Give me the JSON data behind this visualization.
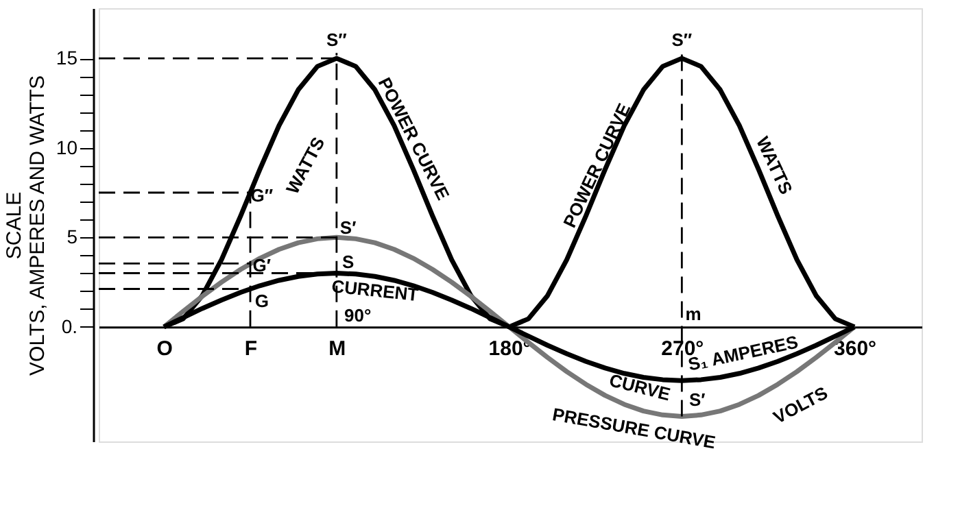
{
  "chart_data": {
    "type": "line",
    "ylabel": "SCALE\nVOLTS, AMPERES AND WATTS",
    "xlim": [
      -34,
      395
    ],
    "ylim": [
      -6.4,
      17.8
    ],
    "xticks": [
      {
        "value": 0,
        "label": "O"
      },
      {
        "value": 45,
        "label": "F"
      },
      {
        "value": 90,
        "label": "M"
      },
      {
        "value": 180,
        "label": "180°"
      },
      {
        "value": 270,
        "label": "270°"
      },
      {
        "value": 360,
        "label": "360°"
      }
    ],
    "yticks": [
      {
        "value": 0,
        "label": "0."
      },
      {
        "value": 1,
        "label": null
      },
      {
        "value": 2,
        "label": null
      },
      {
        "value": 3,
        "label": null
      },
      {
        "value": 4,
        "label": null
      },
      5,
      {
        "value": 6,
        "label": null
      },
      {
        "value": 7,
        "label": null
      },
      {
        "value": 8,
        "label": null
      },
      {
        "value": 9,
        "label": null
      },
      10,
      {
        "value": 11,
        "label": null
      },
      {
        "value": 12,
        "label": null
      },
      {
        "value": 13,
        "label": null
      },
      {
        "value": 14,
        "label": null
      },
      15
    ],
    "grid": false,
    "marker": "none",
    "x": [
      0,
      10,
      20,
      30,
      40,
      50,
      60,
      70,
      80,
      90,
      100,
      110,
      120,
      130,
      140,
      150,
      160,
      170,
      180,
      190,
      200,
      210,
      220,
      230,
      240,
      250,
      260,
      270,
      280,
      290,
      300,
      310,
      320,
      330,
      340,
      350,
      360
    ],
    "series": [
      {
        "color": "#000000",
        "line_style": "solid",
        "values": [
          0,
          0.45,
          1.75,
          3.75,
          6.2,
          8.8,
          11.25,
          13.24,
          14.55,
          15,
          14.55,
          13.24,
          11.25,
          8.8,
          6.2,
          3.75,
          1.75,
          0.45,
          0,
          0.45,
          1.75,
          3.75,
          6.2,
          8.8,
          11.25,
          13.24,
          14.55,
          15,
          14.55,
          13.24,
          11.25,
          8.8,
          6.2,
          3.75,
          1.75,
          0.45,
          0
        ]
      },
      {
        "color": "#777777",
        "line_style": "solid",
        "values": [
          0,
          0.87,
          1.71,
          2.5,
          3.21,
          3.83,
          4.33,
          4.7,
          4.92,
          5,
          4.92,
          4.7,
          4.33,
          3.83,
          3.21,
          2.5,
          1.71,
          0.87,
          0,
          -0.87,
          -1.71,
          -2.5,
          -3.21,
          -3.83,
          -4.33,
          -4.7,
          -4.92,
          -5,
          -4.92,
          -4.7,
          -4.33,
          -3.83,
          -3.21,
          -2.5,
          -1.71,
          -0.87,
          0
        ]
      },
      {
        "color": "#000000",
        "line_style": "solid",
        "values": [
          0,
          0.52,
          1.03,
          1.5,
          1.93,
          2.3,
          2.6,
          2.82,
          2.95,
          3,
          2.95,
          2.82,
          2.6,
          2.3,
          1.93,
          1.5,
          1.03,
          0.52,
          0,
          -0.52,
          -1.03,
          -1.5,
          -1.93,
          -2.3,
          -2.6,
          -2.82,
          -2.95,
          -3,
          -2.95,
          -2.82,
          -2.6,
          -2.3,
          -1.93,
          -1.5,
          -1.03,
          -0.52,
          0
        ]
      },
      {
        "color": "#000000",
        "line_style": "dashed",
        "x": [
          -34,
          90
        ],
        "values": [
          15,
          15
        ]
      },
      {
        "color": "#000000",
        "line_style": "dashed",
        "x": [
          -34,
          45
        ],
        "values": [
          7.5,
          7.5
        ]
      },
      {
        "color": "#000000",
        "line_style": "dashed",
        "x": [
          -34,
          90
        ],
        "values": [
          5,
          5
        ]
      },
      {
        "color": "#000000",
        "line_style": "dashed",
        "x": [
          -34,
          45
        ],
        "values": [
          3.54,
          3.54
        ]
      },
      {
        "color": "#000000",
        "line_style": "dashed",
        "x": [
          -34,
          90
        ],
        "values": [
          3,
          3
        ]
      },
      {
        "color": "#000000",
        "line_style": "dashed",
        "x": [
          -34,
          45
        ],
        "values": [
          2.12,
          2.12
        ]
      },
      {
        "color": "#000000",
        "line_style": "dashed",
        "x": [
          45,
          45
        ],
        "values": [
          0,
          7.5
        ]
      },
      {
        "color": "#000000",
        "line_style": "dashed",
        "x": [
          90,
          90
        ],
        "values": [
          0,
          15.3
        ]
      },
      {
        "color": "#000000",
        "line_style": "dashed",
        "x": [
          270,
          270
        ],
        "values": [
          -5,
          15.3
        ]
      }
    ],
    "annotations": [
      "S″",
      "WATTS",
      "POWER CURVE",
      "G″",
      "S′",
      "G′",
      "S",
      "G",
      "CURRENT",
      "90°",
      "POWER CURVE",
      "S″",
      "WATTS",
      "m",
      "S₁ AMPERES",
      "CURVE",
      "S′",
      "PRESSURE CURVE",
      "VOLTS"
    ]
  }
}
